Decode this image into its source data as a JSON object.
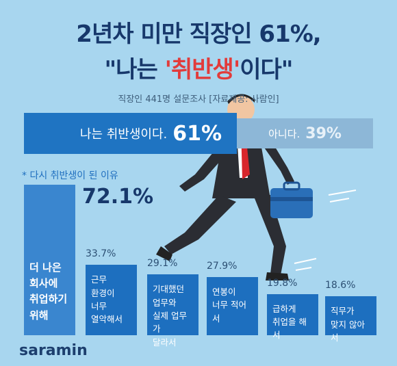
{
  "header": {
    "title_line1": "2년차 미만 직장인 61%,",
    "title_line2": [
      "\"나는 ",
      "'취반생'",
      "이다\""
    ],
    "subtitle": "직장인 441명 설문조사  [자료제공: 사람인]"
  },
  "chart_data": [
    {
      "type": "split",
      "categories": [
        "나는 취반생이다.",
        "아니다."
      ],
      "values": [
        61,
        39
      ],
      "value_labels": [
        "61%",
        "39%"
      ],
      "series_colors": [
        "#1f74c2",
        "#8db7d7"
      ]
    },
    {
      "type": "bar",
      "title": "* 다시 취반생이 된 이유",
      "categories": [
        "더 나은\n회사에\n취업하기\n위해",
        "근무\n환경이\n너무\n열악해서",
        "기대했던\n업무와\n실제 업무가\n달라서",
        "연봉이\n너무 적어서",
        "급하게\n취업을 해서",
        "직무가\n맞지 않아서"
      ],
      "values": [
        72.1,
        33.7,
        29.1,
        27.9,
        19.8,
        18.6
      ],
      "value_labels": [
        "72.1%",
        "33.7%",
        "29.1%",
        "27.9%",
        "19.8%",
        "18.6%"
      ],
      "colors": [
        "#3a86cf",
        "#1d6fbf",
        "#1d6fbf",
        "#1d6fbf",
        "#1d6fbf",
        "#1d6fbf"
      ]
    }
  ],
  "footer": {
    "logo": "saramin"
  }
}
